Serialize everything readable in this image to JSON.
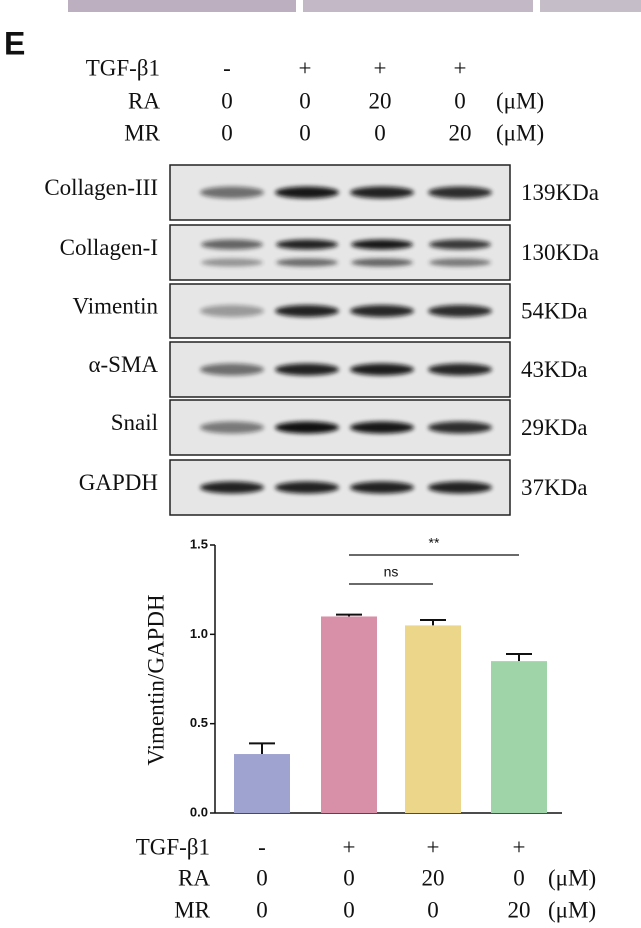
{
  "panel_label": "E",
  "treatments": {
    "rows": [
      {
        "label": "TGF-β1",
        "values": [
          "-",
          "+",
          "+",
          "+"
        ]
      },
      {
        "label": "RA",
        "values": [
          "0",
          "0",
          "20",
          "0"
        ],
        "unit": "(μM)"
      },
      {
        "label": "MR",
        "values": [
          "0",
          "0",
          "0",
          "20"
        ],
        "unit": "(μM)"
      }
    ]
  },
  "blot": {
    "rows": [
      {
        "label": "Collagen-III",
        "size": "139KDa"
      },
      {
        "label": "Collagen-I",
        "size": "130KDa"
      },
      {
        "label": "Vimentin",
        "size": "54KDa"
      },
      {
        "label": "α-SMA",
        "size": "43KDa"
      },
      {
        "label": "Snail",
        "size": "29KDa"
      },
      {
        "label": "GAPDH",
        "size": "37KDa"
      }
    ]
  },
  "chart_data": {
    "type": "bar",
    "y_label": "Vimentin/GAPDH",
    "categories": [
      null,
      null,
      null,
      null
    ],
    "values": [
      0.33,
      1.1,
      1.05,
      0.85
    ],
    "errors": [
      0.06,
      0.01,
      0.03,
      0.04
    ],
    "colors": [
      "#9ea3cf",
      "#d790a8",
      "#ecd68a",
      "#9fd3a8"
    ],
    "ylim": [
      0,
      1.5
    ],
    "yticks": [
      {
        "value": 0,
        "label": "0.0"
      },
      0.5,
      {
        "value": 1,
        "label": "1.0"
      },
      {
        "value": 1.5,
        "label": "1.5"
      }
    ],
    "annotations": [
      "ns",
      "**"
    ],
    "x_table": {
      "rows": [
        {
          "label": "TGF-β1",
          "values": [
            "-",
            "+",
            "+",
            "+"
          ]
        },
        {
          "label": "RA",
          "values": [
            "0",
            "0",
            "20",
            "0"
          ],
          "unit": "(μM)"
        },
        {
          "label": "MR",
          "values": [
            "0",
            "0",
            "0",
            "20"
          ],
          "unit": "(μM)"
        }
      ]
    }
  }
}
